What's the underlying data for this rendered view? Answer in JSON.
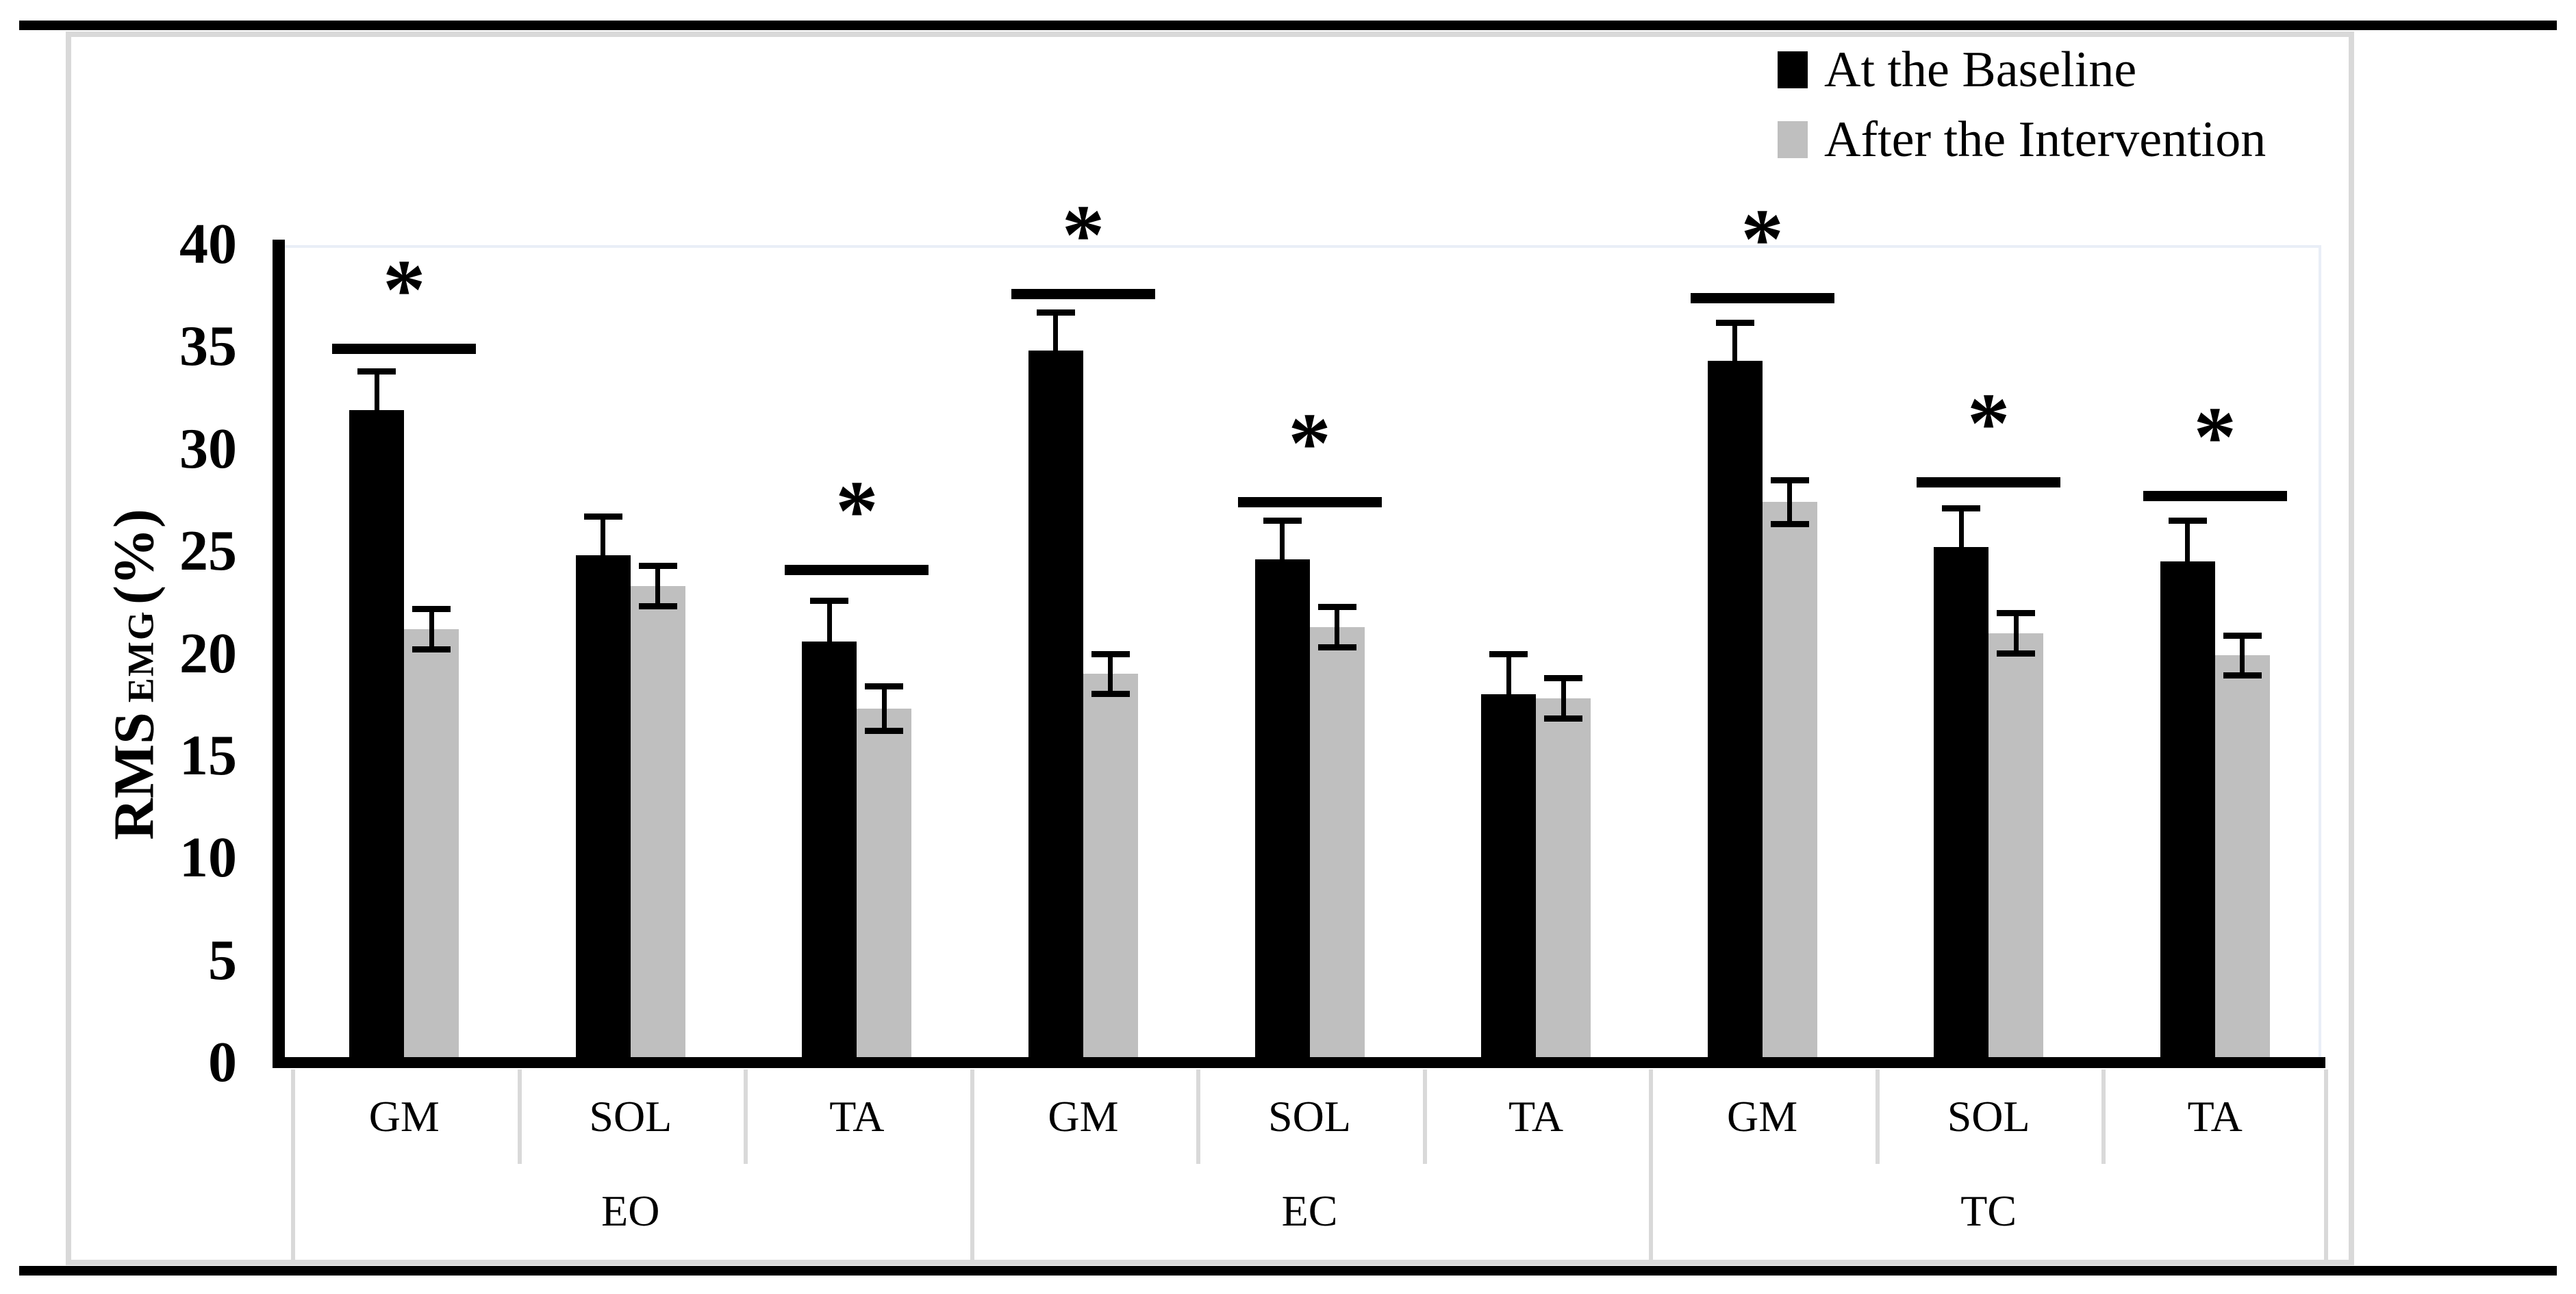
{
  "figure": {
    "kind": "journal-figure-panel",
    "background": "#ffffff",
    "top_rule_color": "#000000",
    "bottom_rule_color": "#000000",
    "chart_frame_color": "#d9d9d9"
  },
  "legend": {
    "position": "top-right"
  },
  "chart_data": {
    "type": "bar",
    "title": "",
    "xlabel": "",
    "ylabel": "RMS EMG (%)",
    "ylabel_parts": {
      "prefix": "RMS",
      "subscript": "EMG",
      "suffix": "(%)"
    },
    "ylim": [
      0,
      40
    ],
    "yticks": [
      "0",
      "5",
      "10",
      "15",
      "20",
      "25",
      "30",
      "35",
      "40"
    ],
    "ytick_values": [
      0,
      5,
      10,
      15,
      20,
      25,
      30,
      35,
      40
    ],
    "grid": false,
    "legend_position": "top-right",
    "group_labels": [
      "EO",
      "EC",
      "TC"
    ],
    "muscle_labels": [
      "GM",
      "SOL",
      "TA",
      "GM",
      "SOL",
      "TA",
      "GM",
      "SOL",
      "TA"
    ],
    "series": [
      {
        "name": "At the Baseline",
        "color": "#000000",
        "values": [
          31.9,
          24.8,
          20.6,
          34.8,
          24.6,
          18.0,
          34.3,
          25.2,
          24.5
        ],
        "errors": [
          1.9,
          1.9,
          2.0,
          1.9,
          1.9,
          2.0,
          1.9,
          1.9,
          2.0
        ]
      },
      {
        "name": "After the Intervention",
        "color": "#bfbfbf",
        "values": [
          21.2,
          23.3,
          17.3,
          19.0,
          21.3,
          17.8,
          27.4,
          21.0,
          19.9
        ],
        "errors": [
          1.0,
          1.0,
          1.1,
          1.0,
          1.0,
          1.0,
          1.1,
          1.0,
          1.0
        ]
      }
    ],
    "significance_markers": [
      {
        "index": 0,
        "label": "*",
        "line_y": 34.9
      },
      {
        "index": 2,
        "label": "*",
        "line_y": 24.1
      },
      {
        "index": 3,
        "label": "*",
        "line_y": 37.6
      },
      {
        "index": 4,
        "label": "*",
        "line_y": 27.4
      },
      {
        "index": 6,
        "label": "*",
        "line_y": 37.4
      },
      {
        "index": 7,
        "label": "*",
        "line_y": 28.4
      },
      {
        "index": 8,
        "label": "*",
        "line_y": 27.7
      }
    ]
  }
}
